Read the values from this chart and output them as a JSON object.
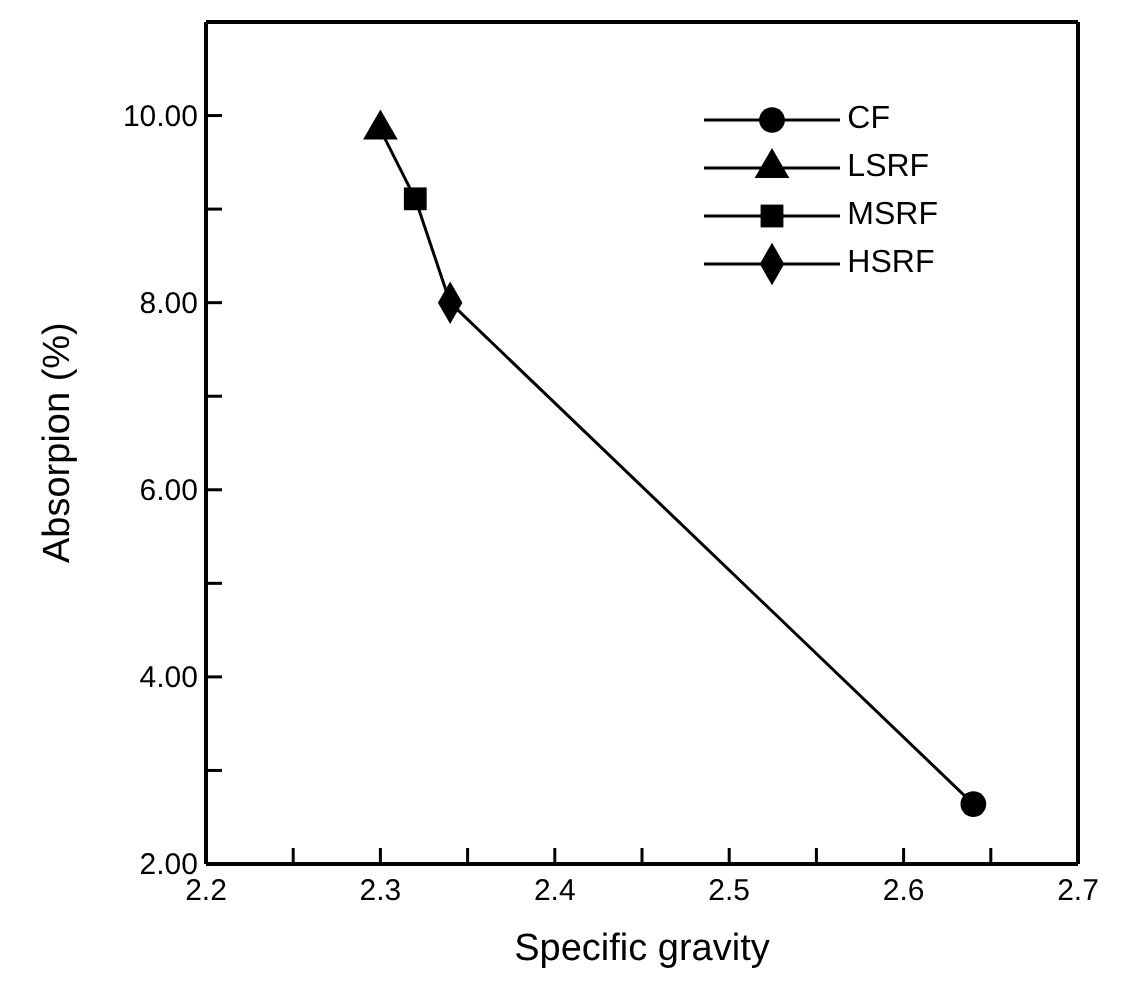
{
  "chart_data": {
    "type": "scatter",
    "xlabel": "Specific gravity",
    "ylabel": "Absorpion (%)",
    "xlim": [
      2.2,
      2.7
    ],
    "xticks": [
      2.2,
      {
        "value": 2.25,
        "label": null
      },
      2.3,
      {
        "value": 2.35,
        "label": null
      },
      2.4,
      {
        "value": 2.45,
        "label": null
      },
      2.5,
      {
        "value": 2.55,
        "label": null
      },
      2.6,
      {
        "value": 2.65,
        "label": null
      },
      2.7
    ],
    "ylim": [
      2,
      11
    ],
    "yticks": [
      {
        "value": 2,
        "label": "2.00"
      },
      {
        "value": 3,
        "label": null
      },
      {
        "value": 4,
        "label": "4.00"
      },
      {
        "value": 5,
        "label": null
      },
      {
        "value": 6,
        "label": "6.00"
      },
      {
        "value": 7,
        "label": null
      },
      {
        "value": 8,
        "label": "8.00"
      },
      {
        "value": 9,
        "label": null
      },
      {
        "value": 10,
        "label": "10.00"
      }
    ],
    "legend": "top right",
    "series": [
      {
        "type": "line",
        "color": "#000000",
        "marker": "none",
        "x": [
          2.3,
          2.32,
          2.34,
          2.64
        ],
        "values": [
          9.85,
          9.11,
          8.0,
          2.64
        ]
      },
      {
        "name": "CF",
        "color": "#000000",
        "marker": "circle",
        "x": [
          2.64
        ],
        "values": [
          2.64
        ]
      },
      {
        "name": "LSRF",
        "color": "#000000",
        "marker": "triangle",
        "x": [
          2.3
        ],
        "values": [
          9.85
        ]
      },
      {
        "name": "MSRF",
        "color": "#000000",
        "marker": "square",
        "x": [
          2.32
        ],
        "values": [
          9.11
        ]
      },
      {
        "name": "HSRF",
        "color": "#000000",
        "marker": "diamond",
        "x": [
          2.34
        ],
        "values": [
          8.0
        ]
      }
    ]
  }
}
